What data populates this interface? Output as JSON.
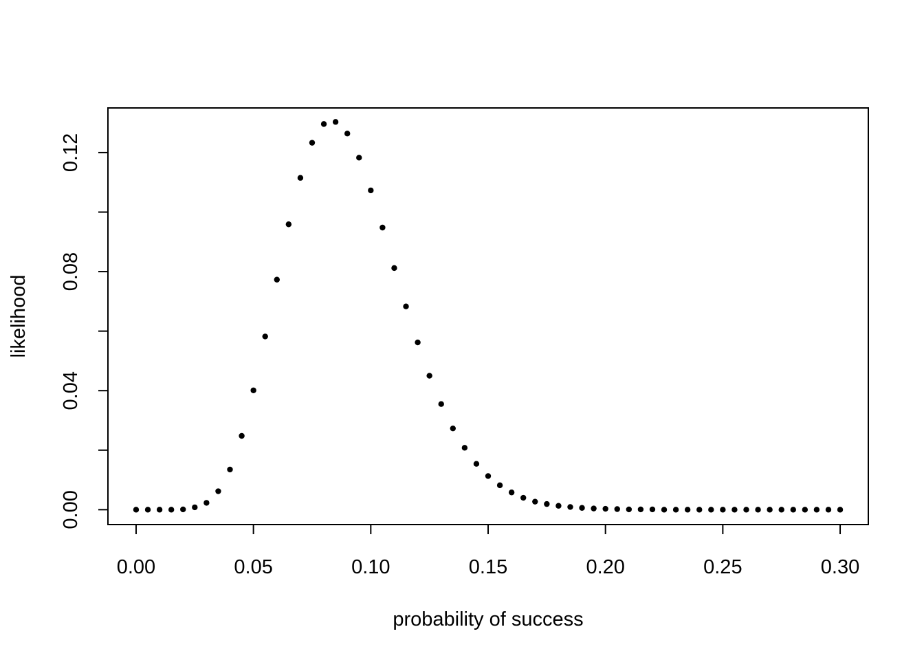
{
  "chart_data": {
    "type": "scatter",
    "title": "",
    "xlabel": "probability of success",
    "ylabel": "likelihood",
    "xlim": [
      -0.012,
      0.312
    ],
    "ylim": [
      -0.005,
      0.135
    ],
    "xticks": [
      "0.00",
      "0.05",
      "0.10",
      "0.15",
      "0.20",
      "0.25",
      "0.30"
    ],
    "yticks": [
      "0.00",
      "0.04",
      "0.08",
      "0.12"
    ],
    "grid": false,
    "legend": "none",
    "point_color": "#000000",
    "series": [
      {
        "x": [
          0.0,
          0.005,
          0.01,
          0.015,
          0.02,
          0.025,
          0.03,
          0.035,
          0.04,
          0.045,
          0.05,
          0.055,
          0.06,
          0.065,
          0.07,
          0.075,
          0.08,
          0.085,
          0.09,
          0.095,
          0.1,
          0.105,
          0.11,
          0.115,
          0.12,
          0.125,
          0.13,
          0.135,
          0.14,
          0.145,
          0.15,
          0.155,
          0.16,
          0.165,
          0.17,
          0.175,
          0.18,
          0.185,
          0.19,
          0.195,
          0.2,
          0.205,
          0.21,
          0.215,
          0.22,
          0.225,
          0.23,
          0.235,
          0.24,
          0.245,
          0.25,
          0.255,
          0.26,
          0.265,
          0.27,
          0.275,
          0.28,
          0.285,
          0.29,
          0.295,
          0.3
        ],
        "y": [
          0.0,
          0.0,
          0.0,
          0.0,
          0.0001,
          0.0008,
          0.0023,
          0.0062,
          0.0135,
          0.0248,
          0.0401,
          0.0582,
          0.0773,
          0.0959,
          0.1115,
          0.1233,
          0.1296,
          0.1303,
          0.1264,
          0.1183,
          0.1073,
          0.0948,
          0.0812,
          0.0683,
          0.0562,
          0.045,
          0.0355,
          0.0273,
          0.0208,
          0.0154,
          0.0113,
          0.0082,
          0.0058,
          0.004,
          0.0027,
          0.0019,
          0.0013,
          0.0009,
          0.0006,
          0.0004,
          0.0003,
          0.0002,
          0.0001,
          0.0001,
          0.0001,
          0.0,
          0.0,
          0.0,
          0.0,
          0.0,
          0.0,
          0.0,
          0.0,
          0.0,
          0.0,
          0.0,
          0.0,
          0.0,
          0.0,
          0.0,
          0.0
        ]
      }
    ]
  }
}
